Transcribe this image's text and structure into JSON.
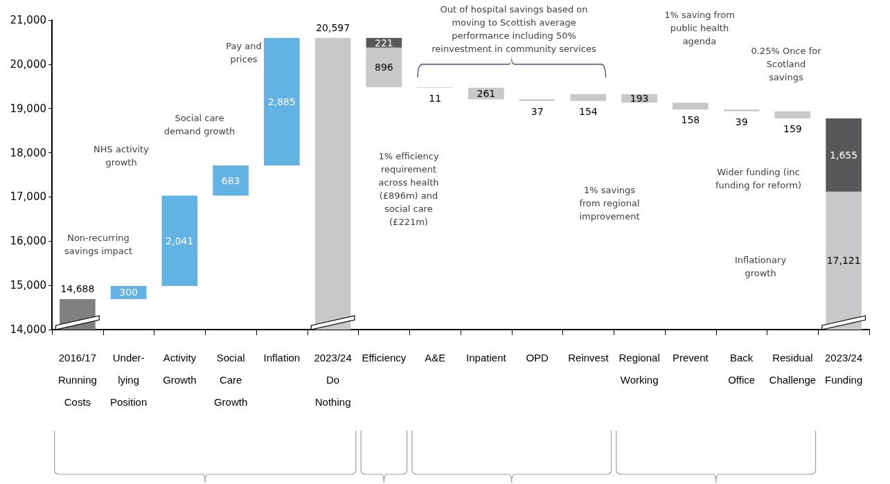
{
  "chart_data": {
    "type": "bar",
    "categories": [
      "2016/17\nRunning\nCosts",
      "Under-\nlying\nPosition",
      "Activity\nGrowth",
      "Social\nCare\nGrowth",
      "Inflation",
      "2023/24\nDo\nNothing",
      "Efficiency",
      "A&E",
      "Inpatient",
      "OPD",
      "Reinvest",
      "Regional\nWorking",
      "Prevent",
      "Back\nOffice",
      "Residual\nChallenge",
      "2023/24\nFunding"
    ],
    "series": [
      {
        "color": "#808080",
        "values": [
          14688,
          null,
          null,
          null,
          null,
          null,
          null,
          null,
          null,
          null,
          null,
          null,
          null,
          null,
          null,
          null
        ],
        "base": [
          null,
          null,
          null,
          null,
          null,
          null,
          null,
          null,
          null,
          null,
          null,
          null,
          null,
          null,
          null,
          null
        ],
        "value_labels": [
          "14,688",
          null,
          null,
          null,
          null,
          null,
          null,
          null,
          null,
          null,
          null,
          null,
          null,
          null,
          null,
          null
        ]
      },
      {
        "color": "#62b3e4",
        "values": [
          null,
          300,
          2041,
          683,
          2885,
          null,
          null,
          null,
          null,
          null,
          null,
          null,
          null,
          null,
          null,
          null
        ],
        "base": [
          null,
          14688,
          14988,
          17029,
          17712,
          null,
          null,
          null,
          null,
          null,
          null,
          null,
          null,
          null,
          null,
          null
        ],
        "value_labels": [
          null,
          "300",
          "2,041",
          "683",
          "2,885",
          null,
          null,
          null,
          null,
          null,
          null,
          null,
          null,
          null,
          null,
          null
        ]
      },
      {
        "color": "#c8c8ca",
        "values": [
          null,
          null,
          null,
          null,
          null,
          20597,
          896,
          11,
          261,
          37,
          154,
          193,
          158,
          39,
          159,
          17121
        ],
        "base": [
          null,
          null,
          null,
          null,
          null,
          null,
          19480,
          19469,
          19208,
          19171,
          19171,
          19132,
          18974,
          18935,
          18776,
          null
        ],
        "value_labels": [
          null,
          null,
          null,
          null,
          null,
          "20,597",
          "896",
          "11",
          "261",
          "37",
          "154",
          "193",
          "158",
          "39",
          "159",
          "17,121"
        ]
      },
      {
        "color": "#58585a",
        "values": [
          null,
          null,
          null,
          null,
          null,
          null,
          221,
          null,
          null,
          null,
          null,
          null,
          null,
          null,
          null,
          1655
        ],
        "base": [
          null,
          null,
          null,
          null,
          null,
          null,
          20376,
          null,
          null,
          null,
          null,
          null,
          null,
          null,
          null,
          17121
        ],
        "value_labels": [
          null,
          null,
          null,
          null,
          null,
          null,
          "221",
          null,
          null,
          null,
          null,
          null,
          null,
          null,
          null,
          "1,655"
        ]
      }
    ],
    "ylim": [
      14000,
      21000
    ],
    "yticks": [
      {
        "value": 14000,
        "label": "14,000"
      },
      {
        "value": 15000,
        "label": "15,000"
      },
      {
        "value": 16000,
        "label": "16,000"
      },
      {
        "value": 17000,
        "label": "17,000"
      },
      {
        "value": 18000,
        "label": "18,000"
      },
      {
        "value": 19000,
        "label": "19,000"
      },
      {
        "value": 20000,
        "label": "20,000"
      },
      {
        "value": 21000,
        "label": "21,000"
      }
    ],
    "grid": false,
    "annotations": [
      "Non-recurring\nsavings impact",
      "NHS activity\ngrowth",
      "Social care\ndemand growth",
      "Pay and\nprices",
      "1% efficiency\nrequirement\nacross health\n(£896m) and\nsocial care\n(£221m)",
      "Out of hospital savings based on\nmoving to Scottish average\nperformance including 50%\nreinvestment in community services",
      "1% savings\nfrom regional\nimprovement",
      "1% saving from\npublic health\nagenda",
      "0.25% Once for\nScotland\nsavings",
      "Wider funding (inc\nfunding for reform)",
      "Inflationary\ngrowth"
    ]
  }
}
